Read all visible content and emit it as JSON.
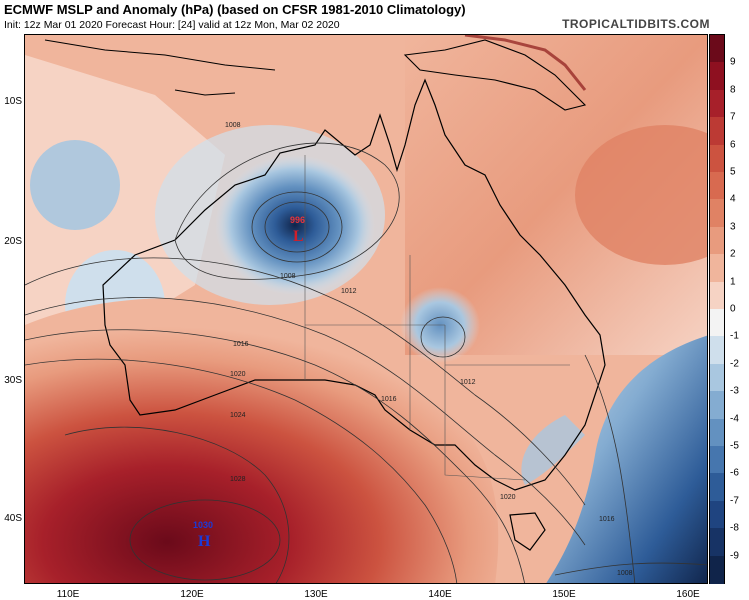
{
  "header": {
    "title": "ECMWF MSLP and Anomaly (hPa) (based on CFSR 1981-2010 Climatology)",
    "subtitle": "Init: 12z Mar 01 2020   Forecast Hour: [24]   valid at 12z Mon, Mar 02 2020",
    "brand": "TROPICALTIDBITS.COM"
  },
  "axes": {
    "lat_labels": [
      "10S",
      "20S",
      "30S",
      "40S"
    ],
    "lon_labels": [
      "110E",
      "120E",
      "130E",
      "140E",
      "150E",
      "160E"
    ]
  },
  "colorbar": {
    "ticks": [
      "9",
      "8",
      "7",
      "6",
      "5",
      "4",
      "3",
      "2",
      "1",
      "0",
      "-1",
      "-2",
      "-3",
      "-4",
      "-5",
      "-6",
      "-7",
      "-8",
      "-9"
    ],
    "colors": [
      "#6b0a1a",
      "#8e1020",
      "#a7202a",
      "#bc3a34",
      "#cc5340",
      "#d86a50",
      "#e08264",
      "#e89b7e",
      "#f0b59c",
      "#f6d3c4",
      "#f3f3f3",
      "#cfdfec",
      "#a9c7e0",
      "#84acd1",
      "#6391c0",
      "#4676ae",
      "#2e5c98",
      "#1f4480",
      "#173365",
      "#10244a"
    ]
  },
  "map": {
    "isobar_labels": [
      "1008",
      "1012",
      "1016",
      "1020",
      "1024",
      "1028",
      "1008",
      "1012",
      "1016",
      "1020",
      "1016",
      "1008"
    ],
    "low": {
      "symbol": "L",
      "value": "996"
    },
    "high": {
      "symbol": "H",
      "value": "1030"
    },
    "coastline_color": "#000000",
    "isobar_color": "#333333"
  }
}
